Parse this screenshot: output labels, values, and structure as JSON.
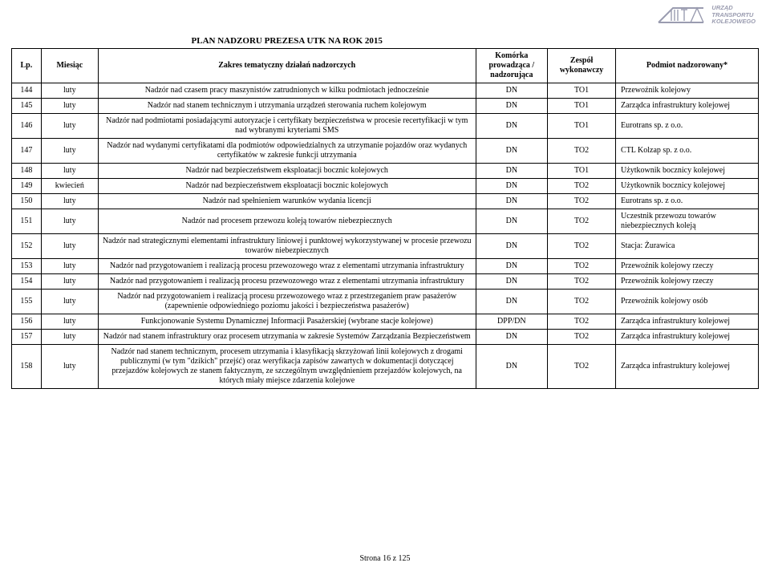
{
  "logo": {
    "line1": "URZĄD",
    "line2": "TRANSPORTU",
    "line3": "KOLEJOWEGO",
    "stroke_color": "#9a9cb0"
  },
  "plan_title": "PLAN NADZORU PREZESA UTK NA ROK 2015",
  "headers": {
    "lp": "Lp.",
    "month": "Miesiąc",
    "scope": "Zakres tematyczny działań nadzorczych",
    "cell": "Komórka prowadząca / nadzorująca",
    "team": "Zespół wykonawczy",
    "entity": "Podmiot nadzorowany*"
  },
  "rows": [
    {
      "lp": "144",
      "m": "luty",
      "scope": "Nadzór nad czasem pracy maszynistów zatrudnionych w kilku podmiotach jednocześnie",
      "cell": "DN",
      "team": "TO1",
      "ent": "Przewoźnik kolejowy"
    },
    {
      "lp": "145",
      "m": "luty",
      "scope": "Nadzór nad stanem technicznym i utrzymania urządzeń sterowania ruchem kolejowym",
      "cell": "DN",
      "team": "TO1",
      "ent": "Zarządca infrastruktury kolejowej"
    },
    {
      "lp": "146",
      "m": "luty",
      "scope": "Nadzór nad podmiotami posiadającymi autoryzacje i certyfikaty bezpieczeństwa w procesie recertyfikacji w tym nad wybranymi kryteriami SMS",
      "cell": "DN",
      "team": "TO1",
      "ent": "Eurotrans sp. z o.o."
    },
    {
      "lp": "147",
      "m": "luty",
      "scope": "Nadzór nad wydanymi certyfikatami dla podmiotów odpowiedzialnych za utrzymanie pojazdów oraz wydanych certyfikatów w zakresie funkcji utrzymania",
      "cell": "DN",
      "team": "TO2",
      "ent": "CTL Kolzap sp. z o.o."
    },
    {
      "lp": "148",
      "m": "luty",
      "scope": "Nadzór nad bezpieczeństwem eksploatacji bocznic kolejowych",
      "cell": "DN",
      "team": "TO1",
      "ent": "Użytkownik bocznicy kolejowej"
    },
    {
      "lp": "149",
      "m": "kwiecień",
      "scope": "Nadzór nad bezpieczeństwem eksploatacji bocznic kolejowych",
      "cell": "DN",
      "team": "TO2",
      "ent": "Użytkownik bocznicy kolejowej"
    },
    {
      "lp": "150",
      "m": "luty",
      "scope": "Nadzór nad spełnieniem warunków wydania licencji",
      "cell": "DN",
      "team": "TO2",
      "ent": "Eurotrans sp. z o.o."
    },
    {
      "lp": "151",
      "m": "luty",
      "scope": "Nadzór nad procesem przewozu koleją towarów niebezpiecznych",
      "cell": "DN",
      "team": "TO2",
      "ent": "Uczestnik przewozu towarów niebezpiecznych koleją"
    },
    {
      "lp": "152",
      "m": "luty",
      "scope": "Nadzór nad strategicznymi elementami infrastruktury liniowej i punktowej wykorzystywanej w procesie przewozu towarów niebezpiecznych",
      "cell": "DN",
      "team": "TO2",
      "ent": "Stacja: Żurawica"
    },
    {
      "lp": "153",
      "m": "luty",
      "scope": "Nadzór nad przygotowaniem i realizacją procesu przewozowego wraz z elementami utrzymania infrastruktury",
      "cell": "DN",
      "team": "TO2",
      "ent": "Przewoźnik kolejowy rzeczy"
    },
    {
      "lp": "154",
      "m": "luty",
      "scope": "Nadzór nad przygotowaniem i realizacją procesu przewozowego wraz z elementami utrzymania infrastruktury",
      "cell": "DN",
      "team": "TO2",
      "ent": "Przewoźnik kolejowy rzeczy"
    },
    {
      "lp": "155",
      "m": "luty",
      "scope": "Nadzór nad przygotowaniem i realizacją procesu przewozowego wraz z przestrzeganiem praw pasażerów (zapewnienie odpowiedniego poziomu jakości i bezpieczeństwa pasażerów)",
      "cell": "DN",
      "team": "TO2",
      "ent": "Przewoźnik kolejowy osób"
    },
    {
      "lp": "156",
      "m": "luty",
      "scope": "Funkcjonowanie Systemu Dynamicznej Informacji Pasażerskiej (wybrane stacje kolejowe)",
      "cell": "DPP/DN",
      "team": "TO2",
      "ent": "Zarządca infrastruktury kolejowej"
    },
    {
      "lp": "157",
      "m": "luty",
      "scope": "Nadzór nad stanem infrastruktury oraz procesem utrzymania w zakresie Systemów Zarządzania Bezpieczeństwem",
      "cell": "DN",
      "team": "TO2",
      "ent": "Zarządca infrastruktury kolejowej"
    },
    {
      "lp": "158",
      "m": "luty",
      "scope": "Nadzór nad stanem technicznym, procesem utrzymania i klasyfikacją skrzyżowań linii kolejowych z drogami publicznymi (w tym \"dzikich\" przejść) oraz weryfikacja zapisów zawartych w dokumentacji dotyczącej przejazdów kolejowych ze stanem faktycznym, ze szczególnym uwzględnieniem przejazdów kolejowych, na których miały miejsce zdarzenia kolejowe",
      "cell": "DN",
      "team": "TO2",
      "ent": "Zarządca infrastruktury kolejowej"
    }
  ],
  "footer": "Strona 16 z 125"
}
